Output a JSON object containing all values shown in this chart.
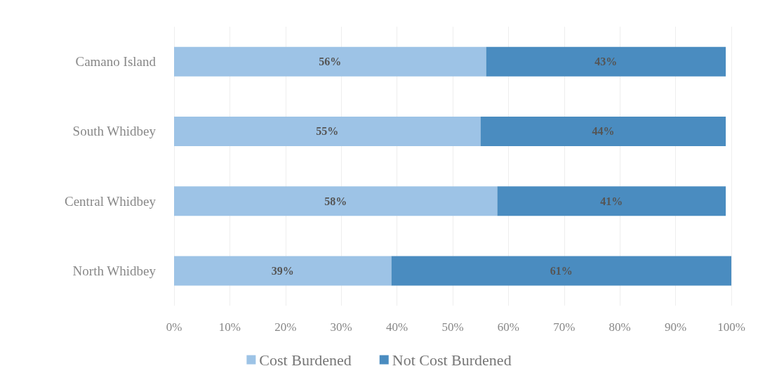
{
  "chart_data": {
    "type": "bar",
    "orientation": "horizontal",
    "stacked": true,
    "categories": [
      "Camano Island",
      "South Whidbey",
      "Central Whidbey",
      "North Whidbey"
    ],
    "series": [
      {
        "name": "Cost Burdened",
        "color": "#9dc3e6",
        "values": [
          56,
          55,
          58,
          39
        ]
      },
      {
        "name": "Not Cost Burdened",
        "color": "#4a8cc0",
        "values": [
          43,
          44,
          41,
          61
        ]
      }
    ],
    "value_labels": [
      [
        "56%",
        "55%",
        "58%",
        "39%"
      ],
      [
        "43%",
        "44%",
        "41%",
        "61%"
      ]
    ],
    "xlim": [
      0,
      100
    ],
    "xticks": [
      {
        "value": 0,
        "label": "0%"
      },
      {
        "value": 10,
        "label": "10%"
      },
      {
        "value": 20,
        "label": "20%"
      },
      {
        "value": 30,
        "label": "30%"
      },
      {
        "value": 40,
        "label": "40%"
      },
      {
        "value": 50,
        "label": "50%"
      },
      {
        "value": 60,
        "label": "60%"
      },
      {
        "value": 70,
        "label": "70%"
      },
      {
        "value": 80,
        "label": "80%"
      },
      {
        "value": 90,
        "label": "90%"
      },
      {
        "value": 100,
        "label": "100%"
      }
    ],
    "grid": "x",
    "legend": "bottom"
  }
}
